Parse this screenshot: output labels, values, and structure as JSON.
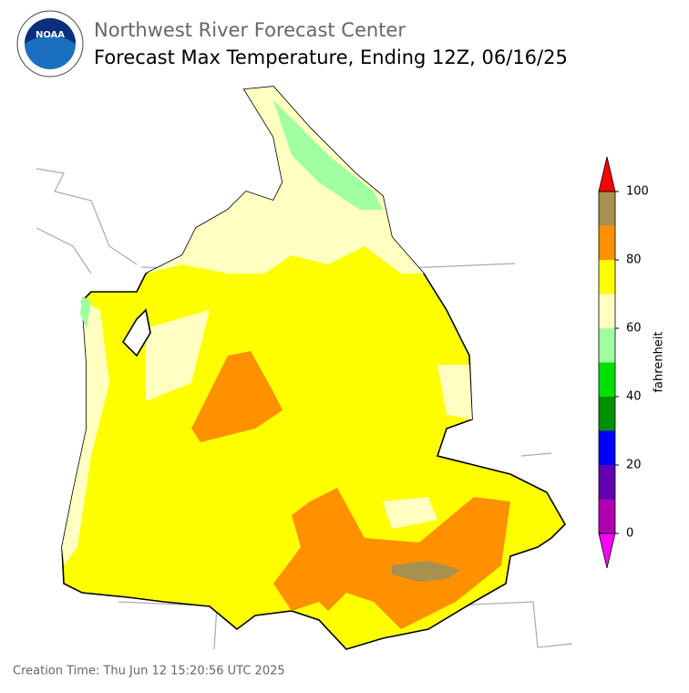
{
  "header": {
    "agency": "Northwest River Forecast Center",
    "title": "Forecast Max Temperature, Ending 12Z, 06/16/25",
    "logo": "NOAA"
  },
  "colorbar": {
    "label": "fahrenheit",
    "lim": [
      0,
      100
    ],
    "ticks": [
      0,
      20,
      40,
      60,
      80,
      100
    ],
    "bounds": [
      0,
      10,
      20,
      30,
      40,
      50,
      60,
      70,
      80,
      90,
      100
    ],
    "colors": [
      "#b000b0",
      "#6000b0",
      "#0000ff",
      "#009000",
      "#00e000",
      "#a0ffa0",
      "#ffffc0",
      "#ffff00",
      "#ff9000",
      "#a89050"
    ],
    "under_color": "#ff00ff",
    "over_color": "#ff0000"
  },
  "footer": {
    "creation_time": "Creation Time: Thu Jun 12 15:20:56 UTC 2025"
  }
}
